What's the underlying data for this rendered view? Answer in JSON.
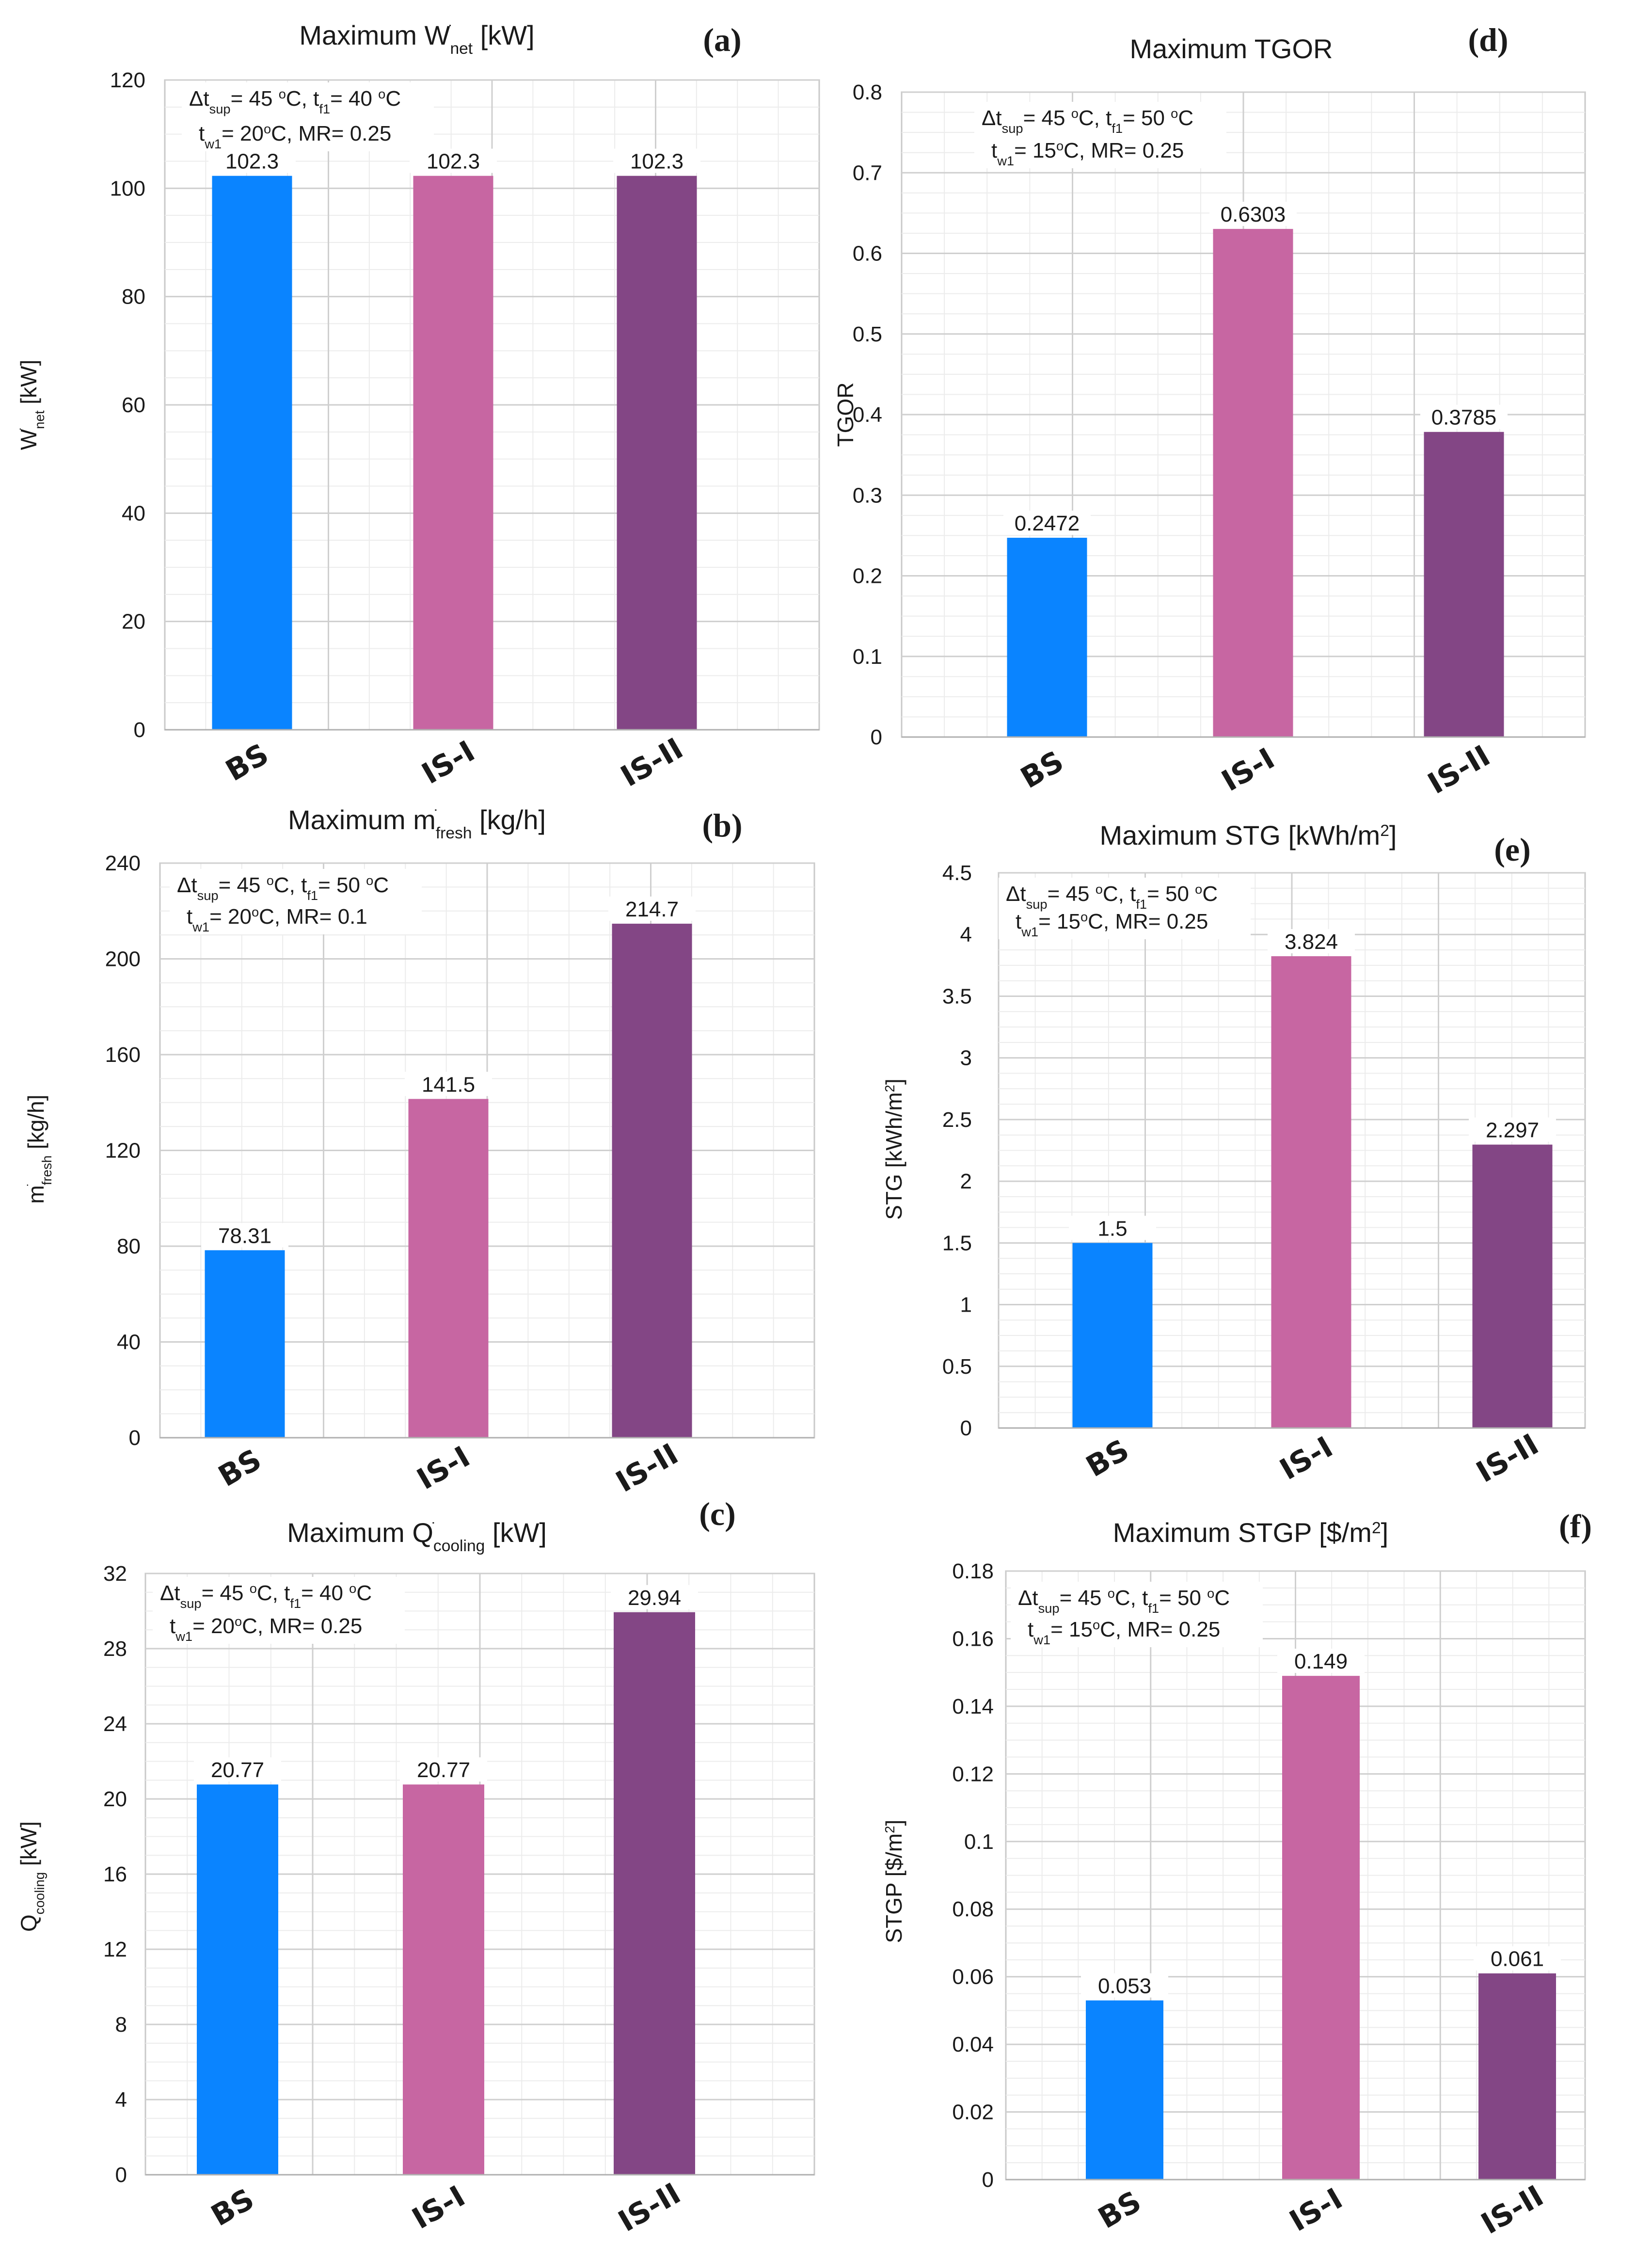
{
  "figure": {
    "panels_in_order": [
      "a",
      "b",
      "c",
      "d",
      "e",
      "f"
    ]
  },
  "chart_data": [
    {
      "id": "a",
      "panel_label": "(a)",
      "type": "bar",
      "title": {
        "pre": "Maximum W",
        "sup": "̇",
        "sub": "net",
        "post": " [kW]"
      },
      "ylabel": {
        "pre": "W",
        "sup": "̇",
        "sub": "net",
        "post": " [kW]"
      },
      "annotation": {
        "line1": [
          {
            "t": "Δt"
          },
          {
            "t": "sup",
            "sub": true
          },
          {
            "t": "= 45 "
          },
          {
            "t": "o",
            "sup": true
          },
          {
            "t": "C, t"
          },
          {
            "t": "f1",
            "sub": true
          },
          {
            "t": "= 40 "
          },
          {
            "t": "o",
            "sup": true
          },
          {
            "t": "C"
          }
        ],
        "line2": [
          {
            "t": "t"
          },
          {
            "t": "w1",
            "sub": true
          },
          {
            "t": "= 20"
          },
          {
            "t": "o",
            "sup": true
          },
          {
            "t": "C, MR= 0.25"
          }
        ]
      },
      "categories": [
        "BS",
        "IS-I",
        "IS-II"
      ],
      "values": [
        102.3,
        102.3,
        102.3
      ],
      "value_labels": [
        "102.3",
        "102.3",
        "102.3"
      ],
      "colors": [
        "#0a84ff",
        "#c766a2",
        "#834685"
      ],
      "ylim": [
        0,
        120
      ],
      "yticks": [
        0,
        20,
        40,
        60,
        80,
        100,
        120
      ],
      "ytick_labels": [
        "0",
        "20",
        "40",
        "60",
        "80",
        "100",
        "120"
      ],
      "grid": true
    },
    {
      "id": "b",
      "panel_label": "(b)",
      "type": "bar",
      "title": {
        "pre": "Maximum m",
        "sup": "̇",
        "sub": "fresh",
        "post": " [kg/h]"
      },
      "ylabel": {
        "pre": "m",
        "sup": "̇",
        "sub": "fresh",
        "post": " [kg/h]"
      },
      "annotation": {
        "line1": [
          {
            "t": "Δt"
          },
          {
            "t": "sup",
            "sub": true
          },
          {
            "t": "= 45 "
          },
          {
            "t": "o",
            "sup": true
          },
          {
            "t": "C, t"
          },
          {
            "t": "f1",
            "sub": true
          },
          {
            "t": "= 50 "
          },
          {
            "t": "o",
            "sup": true
          },
          {
            "t": "C"
          }
        ],
        "line2": [
          {
            "t": "t"
          },
          {
            "t": "w1",
            "sub": true
          },
          {
            "t": "= 20"
          },
          {
            "t": "o",
            "sup": true
          },
          {
            "t": "C, MR= 0.1"
          }
        ]
      },
      "categories": [
        "BS",
        "IS-I",
        "IS-II"
      ],
      "values": [
        78.31,
        141.5,
        214.7
      ],
      "value_labels": [
        "78.31",
        "141.5",
        "214.7"
      ],
      "colors": [
        "#0a84ff",
        "#c766a2",
        "#834685"
      ],
      "ylim": [
        0,
        240
      ],
      "yticks": [
        0,
        40,
        80,
        120,
        160,
        200,
        240
      ],
      "ytick_labels": [
        "0",
        "40",
        "80",
        "120",
        "160",
        "200",
        "240"
      ],
      "grid": true
    },
    {
      "id": "c",
      "panel_label": "(c)",
      "type": "bar",
      "title": {
        "pre": "Maximum Q",
        "sup": "̇",
        "sub": "cooling",
        "post": " [kW]"
      },
      "ylabel": {
        "pre": "Q",
        "sup": "",
        "sub": "cooling",
        "post": " [kW]"
      },
      "annotation": {
        "line1": [
          {
            "t": "Δt"
          },
          {
            "t": "sup",
            "sub": true
          },
          {
            "t": "= 45 "
          },
          {
            "t": "o",
            "sup": true
          },
          {
            "t": "C, t"
          },
          {
            "t": "f1",
            "sub": true
          },
          {
            "t": "= 40 "
          },
          {
            "t": "o",
            "sup": true
          },
          {
            "t": "C"
          }
        ],
        "line2": [
          {
            "t": "t"
          },
          {
            "t": "w1",
            "sub": true
          },
          {
            "t": "= 20"
          },
          {
            "t": "o",
            "sup": true
          },
          {
            "t": "C, MR= 0.25"
          }
        ]
      },
      "categories": [
        "BS",
        "IS-I",
        "IS-II"
      ],
      "values": [
        20.77,
        20.77,
        29.94
      ],
      "value_labels": [
        "20.77",
        "20.77",
        "29.94"
      ],
      "colors": [
        "#0a84ff",
        "#c766a2",
        "#834685"
      ],
      "ylim": [
        0,
        32
      ],
      "yticks": [
        0,
        4,
        8,
        12,
        16,
        20,
        24,
        28,
        32
      ],
      "ytick_labels": [
        "0",
        "4",
        "8",
        "12",
        "16",
        "20",
        "24",
        "28",
        "32"
      ],
      "grid": true
    },
    {
      "id": "d",
      "panel_label": "(d)",
      "type": "bar",
      "title": {
        "pre": "Maximum TGOR",
        "sup": "",
        "sub": "",
        "post": ""
      },
      "ylabel": {
        "pre": "TGOR",
        "sup": "",
        "sub": "",
        "post": ""
      },
      "annotation": {
        "line1": [
          {
            "t": "Δt"
          },
          {
            "t": "sup",
            "sub": true
          },
          {
            "t": "= 45 "
          },
          {
            "t": "o",
            "sup": true
          },
          {
            "t": "C, t"
          },
          {
            "t": "f1",
            "sub": true
          },
          {
            "t": "= 50 "
          },
          {
            "t": "o",
            "sup": true
          },
          {
            "t": "C"
          }
        ],
        "line2": [
          {
            "t": "t"
          },
          {
            "t": "w1",
            "sub": true
          },
          {
            "t": "= 15"
          },
          {
            "t": "o",
            "sup": true
          },
          {
            "t": "C, MR= 0.25"
          }
        ]
      },
      "categories": [
        "BS",
        "IS-I",
        "IS-II"
      ],
      "values": [
        0.2472,
        0.6303,
        0.3785
      ],
      "value_labels": [
        "0.2472",
        "0.6303",
        "0.3785"
      ],
      "colors": [
        "#0a84ff",
        "#c766a2",
        "#834685"
      ],
      "ylim": [
        0,
        0.8
      ],
      "yticks": [
        0,
        0.1,
        0.2,
        0.3,
        0.4,
        0.5,
        0.6,
        0.7,
        0.8
      ],
      "ytick_labels": [
        "0",
        "0.1",
        "0.2",
        "0.3",
        "0.4",
        "0.5",
        "0.6",
        "0.7",
        "0.8"
      ],
      "grid": true
    },
    {
      "id": "e",
      "panel_label": "(e)",
      "type": "bar",
      "title": {
        "pre": "Maximum STG [kWh/m",
        "sup": "2",
        "sub": "",
        "post": "]"
      },
      "ylabel": {
        "pre": "STG [kWh/m",
        "sup": "2",
        "sub": "",
        "post": "]"
      },
      "annotation": {
        "line1": [
          {
            "t": "Δt"
          },
          {
            "t": "sup",
            "sub": true
          },
          {
            "t": "= 45 "
          },
          {
            "t": "o",
            "sup": true
          },
          {
            "t": "C, t"
          },
          {
            "t": "f1",
            "sub": true
          },
          {
            "t": "= 50 "
          },
          {
            "t": "o",
            "sup": true
          },
          {
            "t": "C"
          }
        ],
        "line2": [
          {
            "t": "t"
          },
          {
            "t": "w1",
            "sub": true
          },
          {
            "t": "= 15"
          },
          {
            "t": "o",
            "sup": true
          },
          {
            "t": "C, MR= 0.25"
          }
        ]
      },
      "categories": [
        "BS",
        "IS-I",
        "IS-II"
      ],
      "values": [
        1.5,
        3.824,
        2.297
      ],
      "value_labels": [
        "1.5",
        "3.824",
        "2.297"
      ],
      "colors": [
        "#0a84ff",
        "#c766a2",
        "#834685"
      ],
      "ylim": [
        0,
        4.5
      ],
      "yticks": [
        0,
        0.5,
        1,
        1.5,
        2,
        2.5,
        3,
        3.5,
        4,
        4.5
      ],
      "ytick_labels": [
        "0",
        "0.5",
        "1",
        "1.5",
        "2",
        "2.5",
        "3",
        "3.5",
        "4",
        "4.5"
      ],
      "grid": true
    },
    {
      "id": "f",
      "panel_label": "(f)",
      "type": "bar",
      "title": {
        "pre": "Maximum STGP [$/m",
        "sup": "2",
        "sub": "",
        "post": "]"
      },
      "ylabel": {
        "pre": "STGP [$/m",
        "sup": "2",
        "sub": "",
        "post": "]"
      },
      "annotation": {
        "line1": [
          {
            "t": "Δt"
          },
          {
            "t": "sup",
            "sub": true
          },
          {
            "t": "= 45 "
          },
          {
            "t": "o",
            "sup": true
          },
          {
            "t": "C, t"
          },
          {
            "t": "f1",
            "sub": true
          },
          {
            "t": "= 50 "
          },
          {
            "t": "o",
            "sup": true
          },
          {
            "t": "C"
          }
        ],
        "line2": [
          {
            "t": "t"
          },
          {
            "t": "w1",
            "sub": true
          },
          {
            "t": "= 15"
          },
          {
            "t": "o",
            "sup": true
          },
          {
            "t": "C, MR= 0.25"
          }
        ]
      },
      "categories": [
        "BS",
        "IS-I",
        "IS-II"
      ],
      "values": [
        0.053,
        0.149,
        0.061
      ],
      "value_labels": [
        "0.053",
        "0.149",
        "0.061"
      ],
      "colors": [
        "#0a84ff",
        "#c766a2",
        "#834685"
      ],
      "ylim": [
        0,
        0.18
      ],
      "yticks": [
        0,
        0.02,
        0.04,
        0.06,
        0.08,
        0.1,
        0.12,
        0.14,
        0.16,
        0.18
      ],
      "ytick_labels": [
        "0",
        "0.02",
        "0.04",
        "0.06",
        "0.08",
        "0.1",
        "0.12",
        "0.14",
        "0.16",
        "0.18"
      ],
      "grid": true
    }
  ]
}
